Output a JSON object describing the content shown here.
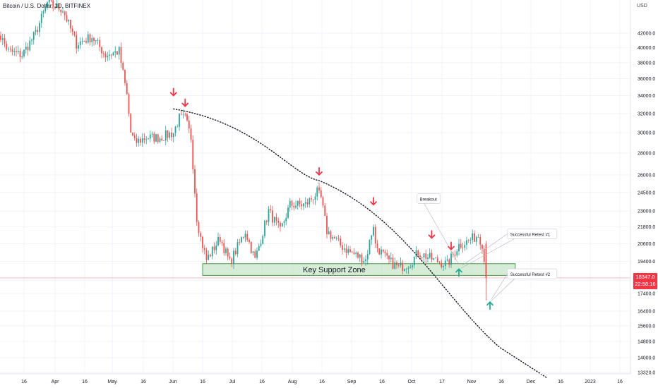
{
  "header": {
    "symbol_title": "Bitcoin / U.S. Dollar, 1D, BITFINEX",
    "currency": "USD"
  },
  "last_price": {
    "value": "18347.0",
    "countdown": "22:58:16",
    "color": "#f23645"
  },
  "chart_data": {
    "type": "candlestick",
    "title": "Bitcoin / U.S. Dollar, 1D, BITFINEX",
    "y_scale": "log",
    "y_unit": "USD",
    "ylim": [
      13000,
      47500
    ],
    "y_ticks": [
      "42000.0",
      "40000.0",
      "38000.0",
      "36000.0",
      "34000.0",
      "32000.0",
      "30000.0",
      "28000.0",
      "26000.0",
      "24500.0",
      "23000.0",
      "21800.0",
      "20600.0",
      "19400.0",
      "18200.0",
      "17400.0",
      "16400.0",
      "15600.0",
      "14800.0",
      "14000.0",
      "13320.0"
    ],
    "x_ticks": [
      "16",
      "Apr",
      "16",
      "May",
      "16",
      "Jun",
      "16",
      "Jul",
      "16",
      "Aug",
      "16",
      "Sep",
      "16",
      "Oct",
      "17",
      "Nov",
      "16",
      "Dec",
      "16",
      "2023",
      "16"
    ],
    "series_path": [
      [
        "Mar 1",
        43000
      ],
      [
        "Mar 8",
        39500
      ],
      [
        "Mar 15",
        39000
      ],
      [
        "Mar 22",
        42000
      ],
      [
        "Mar 28",
        46500
      ],
      [
        "Apr 5",
        45500
      ],
      [
        "Apr 12",
        40500
      ],
      [
        "Apr 20",
        41500
      ],
      [
        "Apr 27",
        39000
      ],
      [
        "May 4",
        39500
      ],
      [
        "May 8",
        34000
      ],
      [
        "May 10",
        30000
      ],
      [
        "May 12",
        29000
      ],
      [
        "May 18",
        29500
      ],
      [
        "May 25",
        29500
      ],
      [
        "Jun 1",
        30000
      ],
      [
        "Jun 4",
        31500
      ],
      [
        "Jun 7",
        31500
      ],
      [
        "Jun 10",
        29500
      ],
      [
        "Jun 13",
        22500
      ],
      [
        "Jun 15",
        21000
      ],
      [
        "Jun 18",
        19500
      ],
      [
        "Jun 25",
        21000
      ],
      [
        "Jun 30",
        19300
      ],
      [
        "Jul 8",
        21500
      ],
      [
        "Jul 13",
        19500
      ],
      [
        "Jul 20",
        23000
      ],
      [
        "Jul 26",
        21500
      ],
      [
        "Jul 31",
        23500
      ],
      [
        "Aug 8",
        23500
      ],
      [
        "Aug 14",
        24500
      ],
      [
        "Aug 16",
        24000
      ],
      [
        "Aug 19",
        21500
      ],
      [
        "Aug 26",
        20500
      ],
      [
        "Aug 31",
        20000
      ],
      [
        "Sep 8",
        19500
      ],
      [
        "Sep 12",
        22000
      ],
      [
        "Sep 13",
        20500
      ],
      [
        "Sep 19",
        19500
      ],
      [
        "Sep 25",
        19000
      ],
      [
        "Oct 1",
        19300
      ],
      [
        "Oct 5",
        20000
      ],
      [
        "Oct 13",
        19500
      ],
      [
        "Oct 20",
        19200
      ],
      [
        "Oct 26",
        20500
      ],
      [
        "Oct 31",
        20800
      ],
      [
        "Nov 5",
        21200
      ],
      [
        "Nov 7",
        20600
      ],
      [
        "Nov 9",
        18347
      ]
    ],
    "trendline": {
      "style": "dotted",
      "points": [
        [
          "Jun 1",
          32500
        ],
        [
          "Aug 15",
          25500
        ],
        [
          "Nov 16",
          14500
        ],
        [
          "Dec 10",
          13100
        ]
      ]
    },
    "support_zone": {
      "label": "Key Support Zone",
      "price_low": 18500,
      "price_high": 19250,
      "from": "Jun 16",
      "to": "Nov 24",
      "fill": "#c8e6c9",
      "border": "#43a047"
    },
    "down_arrows": [
      [
        "Jun 1",
        34000
      ],
      [
        "Jun 7",
        32800
      ],
      [
        "Aug 15",
        26000
      ],
      [
        "Sep 12",
        23500
      ],
      [
        "Oct 12",
        21000
      ],
      [
        "Oct 22",
        20200
      ]
    ],
    "up_arrows": [
      [
        "Oct 26",
        18900
      ],
      [
        "Nov 11",
        16900
      ]
    ],
    "annotations": [
      {
        "text": "Breakout",
        "x": "Oct 19",
        "price": 24000
      },
      {
        "text": "Successful Retest #1",
        "x": "Nov 20",
        "price": 21300
      },
      {
        "text": "Successful Retest #2",
        "x": "Nov 20",
        "price": 18600
      }
    ],
    "last_price_line": 18347,
    "colors": {
      "up": "#26a69a",
      "down": "#ef5350",
      "trendline": "#131722"
    }
  }
}
